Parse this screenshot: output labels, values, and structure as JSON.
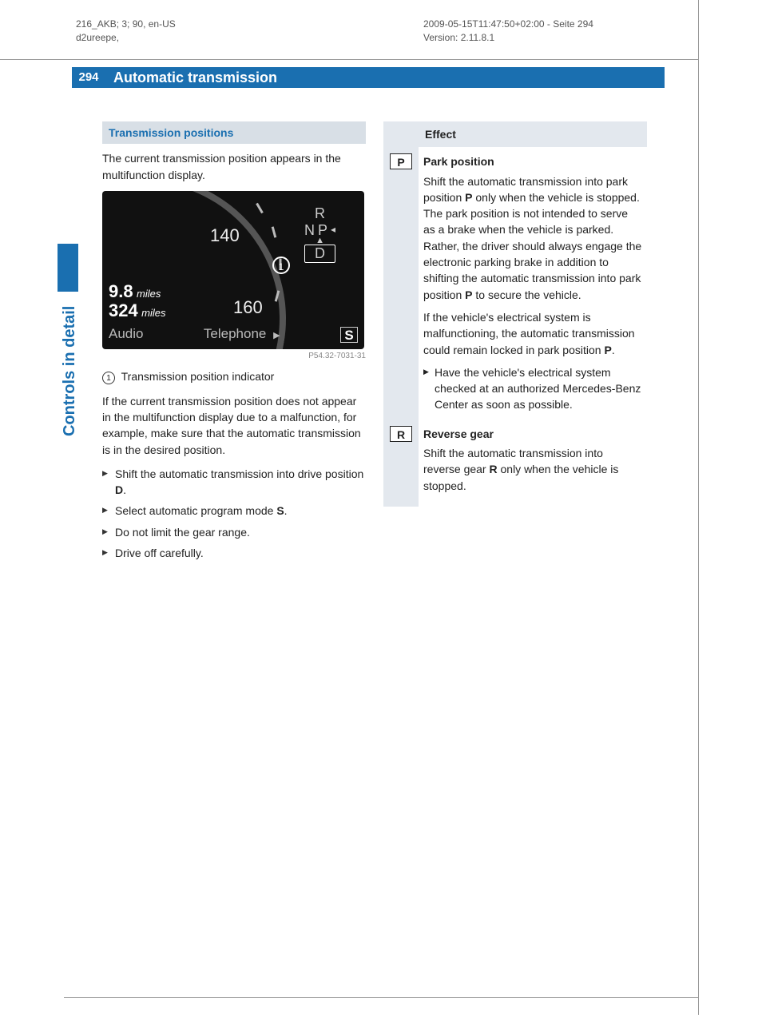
{
  "meta": {
    "left_line1": "216_AKB; 3; 90, en-US",
    "left_line2": "d2ureepe,",
    "right_line1": "2009-05-15T11:47:50+02:00 - Seite 294",
    "right_line2": "Version: 2.11.8.1"
  },
  "page_number": "294",
  "chapter_title": "Automatic transmission",
  "side_label": "Controls in detail",
  "colors": {
    "brand": "#1a6fb0",
    "head_bg": "#d8dfe6",
    "table_bg": "#e3e8ee"
  },
  "left_col": {
    "section_heading": "Transmission positions",
    "intro": "The current transmission position appears in the multifunction display.",
    "image_ref": "P54.32-7031-31",
    "callout_num": "1",
    "callout_label": "Transmission position indicator",
    "note": "If the current transmission position does not appear in the multifunction display due to a malfunction, for example, make sure that the automatic transmission is in the desired position.",
    "steps": [
      {
        "pre": "Shift the automatic transmission into drive position ",
        "bold": "D",
        "post": "."
      },
      {
        "pre": "Select automatic program mode ",
        "bold": "S",
        "post": "."
      },
      {
        "pre": "Do not limit the gear range.",
        "bold": "",
        "post": ""
      },
      {
        "pre": "Drive off carefully.",
        "bold": "",
        "post": ""
      }
    ],
    "dashboard": {
      "trip_value": "9.8",
      "trip_unit": "miles",
      "odo_value": "324",
      "odo_unit": "miles",
      "speed_1": "140",
      "speed_2": "160",
      "gears": [
        "R",
        "N",
        "D"
      ],
      "gear_p": "P",
      "p_arrow": "◂",
      "menu_left": "Audio",
      "menu_mid": "Telephone",
      "menu_arrow": "▶",
      "mode_box": "S"
    }
  },
  "right_col": {
    "header_sym": "",
    "header_effect": "Effect",
    "rows": [
      {
        "symbol": "P",
        "title": "Park position",
        "body_html": "Shift the automatic transmission into park position <b>P</b> only when the vehicle is stopped. The park position is not intended to serve as a brake when the vehicle is parked. Rather, the driver should always engage the electronic parking brake in addition to shifting the automatic transmission into park position <b>P</b> to secure the vehicle.",
        "body2_html": "If the vehicle's electrical system is malfunctioning, the automatic transmission could remain locked in park position <b>P</b>.",
        "bullet": "Have the vehicle's electrical system checked at an authorized Mercedes-Benz Center as soon as possible."
      },
      {
        "symbol": "R",
        "title": "Reverse gear",
        "body_html": "Shift the automatic transmission into reverse gear <b>R</b> only when the vehicle is stopped.",
        "body2_html": "",
        "bullet": ""
      }
    ]
  }
}
